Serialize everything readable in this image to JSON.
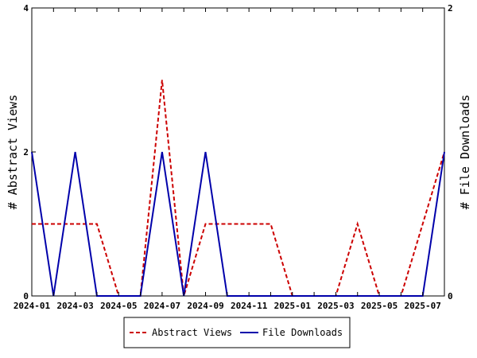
{
  "chart_data": {
    "type": "line",
    "x": [
      "2024-01",
      "2024-02",
      "2024-03",
      "2024-04",
      "2024-05",
      "2024-06",
      "2024-07",
      "2024-08",
      "2024-09",
      "2024-10",
      "2024-11",
      "2024-12",
      "2025-01",
      "2025-02",
      "2025-03",
      "2025-04",
      "2025-05",
      "2025-06",
      "2025-07",
      "2025-08"
    ],
    "x_tick_labels": [
      "2024-01",
      "2024-03",
      "2024-05",
      "2024-07",
      "2024-09",
      "2024-11",
      "2025-01",
      "2025-03",
      "2025-05",
      "2025-07"
    ],
    "ylabel_left": "# Abstract Views",
    "ylabel_right": "# File Downloads",
    "ylim_left": [
      0,
      4
    ],
    "ylim_right": [
      0,
      2
    ],
    "y_ticks_left": [
      "0",
      "2",
      "4"
    ],
    "y_ticks_right": [
      "0",
      "2"
    ],
    "grid": false,
    "legend_position": "bottom",
    "series": [
      {
        "name": "Abstract Views",
        "axis": "left",
        "color": "#cc0000",
        "style": "dashed",
        "values": [
          1,
          1,
          1,
          1,
          0,
          0,
          3,
          0,
          1,
          1,
          1,
          1,
          0,
          0,
          0,
          1,
          0,
          0,
          1,
          2
        ]
      },
      {
        "name": "File Downloads",
        "axis": "right",
        "color": "#0000aa",
        "style": "solid",
        "values": [
          1,
          0,
          1,
          0,
          0,
          0,
          1,
          0,
          1,
          0,
          0,
          0,
          0,
          0,
          0,
          0,
          0,
          0,
          0,
          1
        ]
      }
    ]
  }
}
